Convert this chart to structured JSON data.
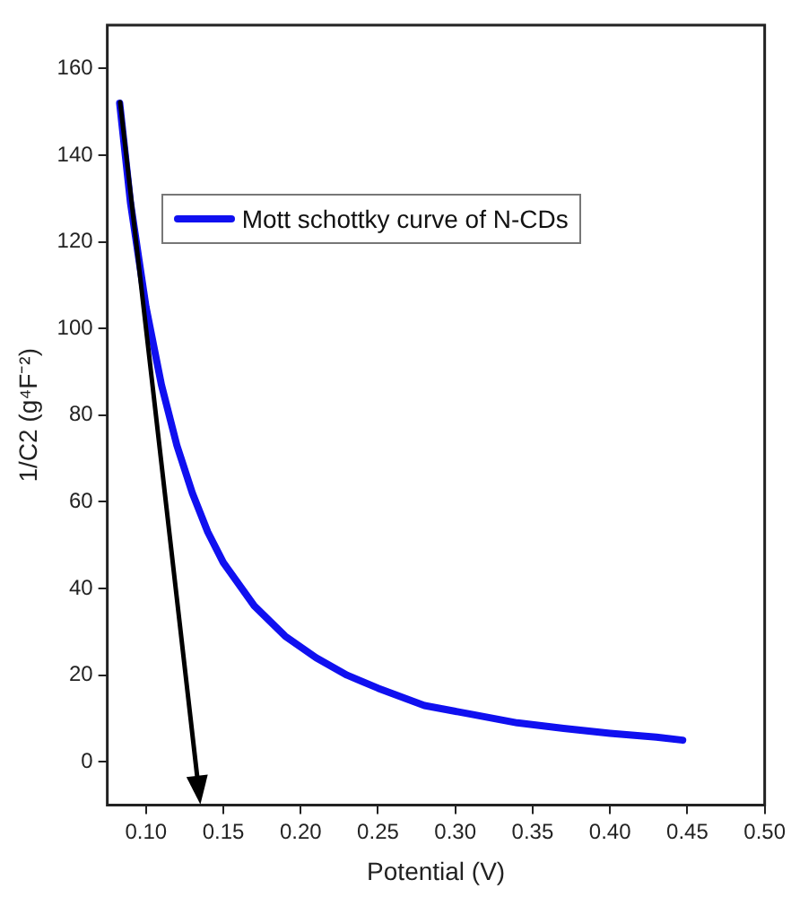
{
  "chart_data": {
    "type": "line",
    "xlabel": "Potential (V)",
    "ylabel": "1/C2 (g⁴F⁻²)",
    "xlim": [
      0.075,
      0.5
    ],
    "xticks": [
      {
        "value": 0.1,
        "label": "0.10"
      },
      {
        "value": 0.15,
        "label": "0.15"
      },
      {
        "value": 0.2,
        "label": "0.20"
      },
      {
        "value": 0.25,
        "label": "0.25"
      },
      {
        "value": 0.3,
        "label": "0.30"
      },
      {
        "value": 0.35,
        "label": "0.35"
      },
      {
        "value": 0.4,
        "label": "0.40"
      },
      {
        "value": 0.45,
        "label": "0.45"
      },
      {
        "value": 0.5,
        "label": "0.50"
      }
    ],
    "ylim": [
      -10,
      170
    ],
    "yticks": [
      0,
      20,
      40,
      60,
      80,
      100,
      120,
      140,
      160
    ],
    "grid": false,
    "legend": "top left",
    "marker": "none",
    "line_style": "solid",
    "series": [
      {
        "name": "Mott schottky curve of N-CDs",
        "color": "#1010f0",
        "x": [
          0.083,
          0.09,
          0.1,
          0.11,
          0.12,
          0.13,
          0.14,
          0.15,
          0.17,
          0.19,
          0.21,
          0.23,
          0.25,
          0.28,
          0.31,
          0.34,
          0.37,
          0.4,
          0.43,
          0.447
        ],
        "values": [
          152,
          129,
          105,
          87,
          73,
          62,
          53,
          46,
          36,
          29,
          24,
          20,
          17,
          13,
          11,
          9,
          7.7,
          6.6,
          5.7,
          5
        ]
      }
    ]
  }
}
